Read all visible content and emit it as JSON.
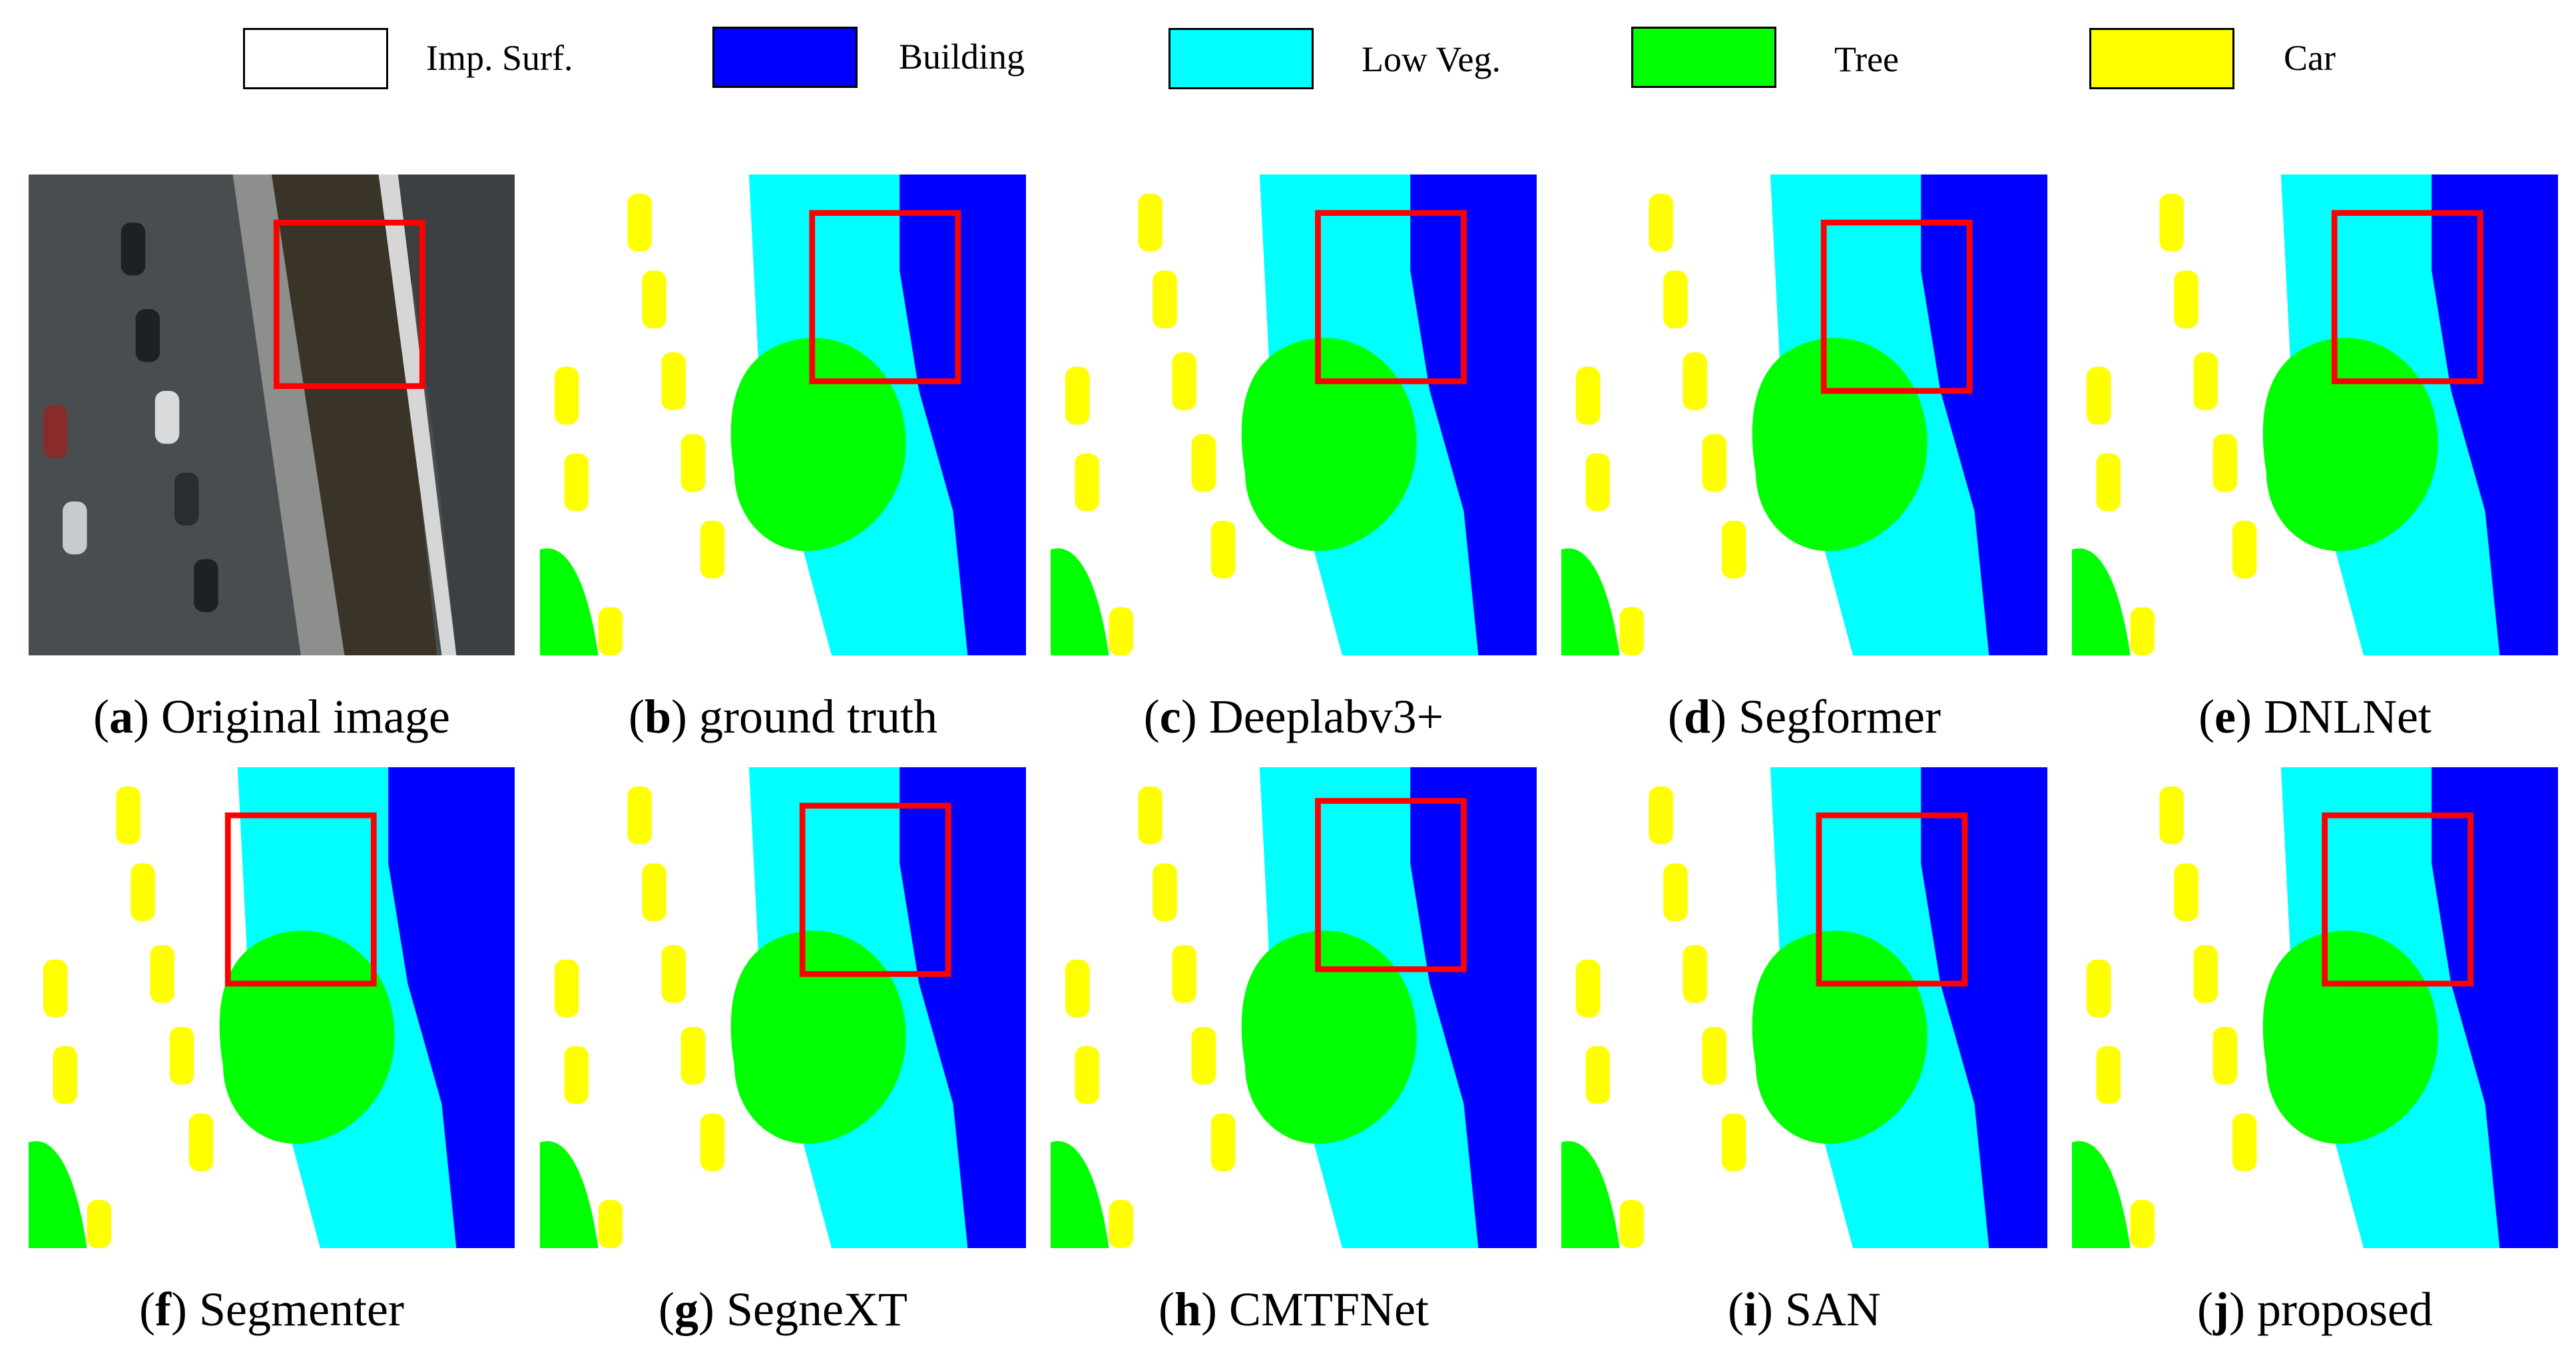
{
  "colors": {
    "imp_surf": "#ffffff",
    "building": "#0000ff",
    "low_veg": "#00ffff",
    "tree": "#00ff00",
    "car": "#ffff00",
    "clutter": "#ff0000",
    "highlight_box": "#ff0000"
  },
  "legend": [
    {
      "label": "Imp. Surf.",
      "color": "#ffffff"
    },
    {
      "label": "Building",
      "color": "#0000ff"
    },
    {
      "label": "Low Veg.",
      "color": "#00ffff"
    },
    {
      "label": "Tree",
      "color": "#00ff00"
    },
    {
      "label": "Car",
      "color": "#ffff00"
    }
  ],
  "panels": [
    {
      "letter": "a",
      "title": "Original image",
      "kind": "photo"
    },
    {
      "letter": "b",
      "title": "ground truth",
      "kind": "segmentation"
    },
    {
      "letter": "c",
      "title": "Deeplabv3+",
      "kind": "segmentation"
    },
    {
      "letter": "d",
      "title": "Segformer",
      "kind": "segmentation"
    },
    {
      "letter": "e",
      "title": "DNLNet",
      "kind": "segmentation"
    },
    {
      "letter": "f",
      "title": "Segmenter",
      "kind": "segmentation"
    },
    {
      "letter": "g",
      "title": "SegneXT",
      "kind": "segmentation"
    },
    {
      "letter": "h",
      "title": "CMTFNet",
      "kind": "segmentation"
    },
    {
      "letter": "i",
      "title": "SAN",
      "kind": "segmentation"
    },
    {
      "letter": "j",
      "title": "proposed",
      "kind": "segmentation"
    }
  ]
}
